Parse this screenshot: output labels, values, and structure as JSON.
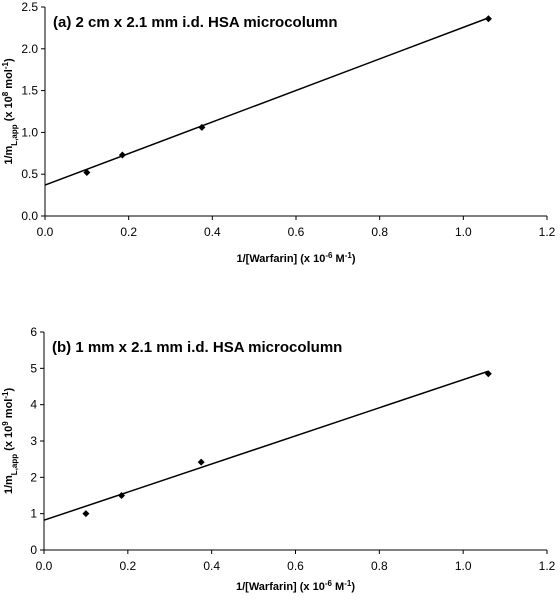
{
  "chart_data": [
    {
      "type": "scatter",
      "title": "(a) 2 cm x 2.1 mm i.d. HSA microcolumn",
      "x_label": [
        "1/[Warfarin] (x 10",
        "-6",
        " M",
        "-1",
        ")"
      ],
      "y_label": [
        "1/m",
        "L,app",
        " (x 10",
        "8",
        " mol",
        "-1",
        ")"
      ],
      "points": {
        "x": [
          0.1,
          0.185,
          0.375,
          1.06
        ],
        "y": [
          0.52,
          0.73,
          1.06,
          2.36
        ]
      },
      "fit": {
        "x": [
          0,
          1.06
        ],
        "y": [
          0.37,
          2.37
        ]
      },
      "color": "#000000",
      "xlim": [
        0,
        1.2
      ],
      "xticks": [
        {
          "value": 0,
          "label": "0.0"
        },
        0.2,
        0.4,
        0.6,
        0.8,
        {
          "value": 1,
          "label": "1.0"
        },
        1.2
      ],
      "ylim": [
        0,
        2.5
      ],
      "yticks": [
        {
          "value": 0,
          "label": "0.0"
        },
        0.5,
        {
          "value": 1,
          "label": "1.0"
        },
        1.5,
        {
          "value": 2,
          "label": "2.0"
        },
        2.5
      ]
    },
    {
      "type": "scatter",
      "title": "(b) 1 mm x 2.1 mm i.d. HSA microcolumn",
      "x_label": [
        "1/[Warfarin] (x 10",
        "-6",
        " M",
        "-1",
        ")"
      ],
      "y_label": [
        "1/m",
        "L,app",
        " (x 10",
        "9",
        " mol",
        "-1",
        ")"
      ],
      "points": {
        "x": [
          0.1,
          0.185,
          0.375,
          1.06
        ],
        "y": [
          1.0,
          1.5,
          2.42,
          4.85
        ]
      },
      "fit": {
        "x": [
          0,
          1.06
        ],
        "y": [
          0.82,
          4.92
        ]
      },
      "color": "#000000",
      "xlim": [
        0,
        1.2
      ],
      "xticks": [
        {
          "value": 0,
          "label": "0.0"
        },
        0.2,
        0.4,
        0.6,
        0.8,
        {
          "value": 1,
          "label": "1.0"
        },
        1.2
      ],
      "ylim": [
        0,
        6
      ],
      "yticks": [
        0,
        1,
        2,
        3,
        4,
        5,
        6
      ]
    }
  ]
}
